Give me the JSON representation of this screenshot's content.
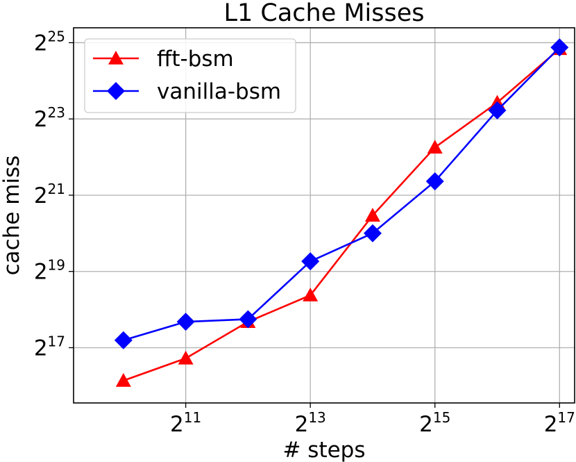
{
  "chart_data": {
    "type": "line",
    "title": "L1 Cache Misses",
    "xlabel": "# steps",
    "ylabel": "cache miss",
    "x_scale": "log2",
    "y_scale": "log2",
    "x": [
      1024,
      2048,
      4096,
      8192,
      16384,
      32768,
      65536,
      131072
    ],
    "xlim": [
      588,
      155000
    ],
    "ylim": [
      48000,
      44000000
    ],
    "x_ticks": [
      {
        "value": 2048,
        "base": "2",
        "exp": "11"
      },
      {
        "value": 8192,
        "base": "2",
        "exp": "13"
      },
      {
        "value": 32768,
        "base": "2",
        "exp": "15"
      },
      {
        "value": 131072,
        "base": "2",
        "exp": "17"
      }
    ],
    "y_ticks": [
      {
        "value": 131072,
        "base": "2",
        "exp": "17"
      },
      {
        "value": 524288,
        "base": "2",
        "exp": "19"
      },
      {
        "value": 2097152,
        "base": "2",
        "exp": "21"
      },
      {
        "value": 8388608,
        "base": "2",
        "exp": "23"
      },
      {
        "value": 33554432,
        "base": "2",
        "exp": "25"
      }
    ],
    "grid": true,
    "legend_position": "top-left",
    "series": [
      {
        "name": "fft-bsm",
        "color": "#ff0000",
        "marker": "triangle",
        "values": [
          72000,
          108000,
          210000,
          340000,
          1450000,
          5000000,
          11300000,
          30000000
        ]
      },
      {
        "name": "vanilla-bsm",
        "color": "#0000ff",
        "marker": "diamond",
        "values": [
          150000,
          210000,
          220000,
          630000,
          1050000,
          2700000,
          9800000,
          30800000
        ]
      }
    ]
  }
}
